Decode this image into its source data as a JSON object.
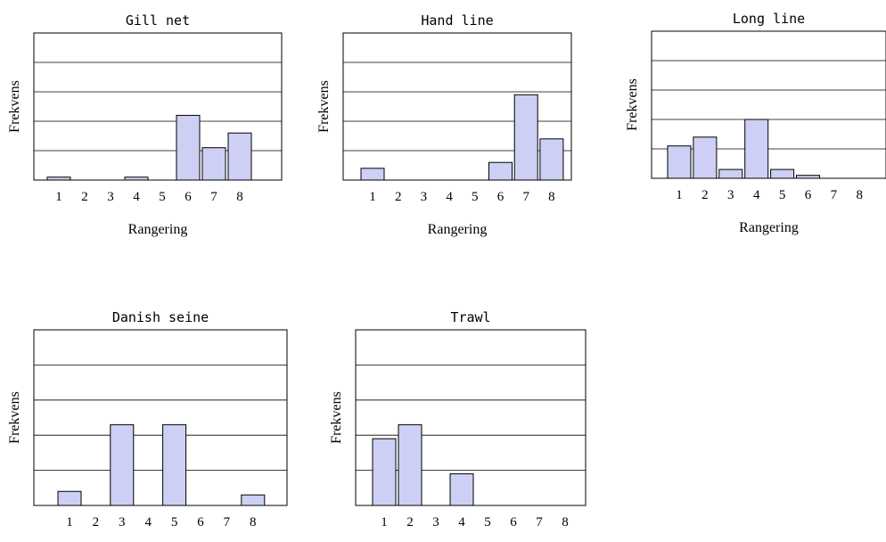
{
  "chart_data": [
    {
      "type": "bar",
      "title": "Gill net",
      "xlabel": "Rangering",
      "ylabel": "Frekvens",
      "categories": [
        "1",
        "2",
        "3",
        "4",
        "5",
        "6",
        "7",
        "8"
      ],
      "values": [
        0.1,
        0,
        0,
        0.1,
        0,
        2.2,
        1.1,
        1.6
      ],
      "ylim": [
        0,
        5
      ],
      "grid": true,
      "color": "#cdd0f4"
    },
    {
      "type": "bar",
      "title": "Hand line",
      "xlabel": "Rangering",
      "ylabel": "Frekvens",
      "categories": [
        "1",
        "2",
        "3",
        "4",
        "5",
        "6",
        "7",
        "8"
      ],
      "values": [
        0.4,
        0,
        0,
        0,
        0,
        0.6,
        2.9,
        1.4
      ],
      "ylim": [
        0,
        5
      ],
      "grid": true,
      "color": "#cdd0f4"
    },
    {
      "type": "bar",
      "title": "Long line",
      "xlabel": "Rangering",
      "ylabel": "Frekvens",
      "categories": [
        "1",
        "2",
        "3",
        "4",
        "5",
        "6",
        "7",
        "8"
      ],
      "values": [
        1.1,
        1.4,
        0.3,
        2.0,
        0.3,
        0.1,
        0,
        0
      ],
      "ylim": [
        0,
        5
      ],
      "grid": true,
      "color": "#cdd0f4"
    },
    {
      "type": "bar",
      "title": "Danish seine",
      "xlabel": "Rangering",
      "ylabel": "Frekvens",
      "categories": [
        "1",
        "2",
        "3",
        "4",
        "5",
        "6",
        "7",
        "8"
      ],
      "values": [
        0.4,
        0,
        2.3,
        0,
        2.3,
        0,
        0,
        0.3
      ],
      "ylim": [
        0,
        5
      ],
      "grid": true,
      "color": "#cdd0f4"
    },
    {
      "type": "bar",
      "title": "Trawl",
      "xlabel": "Rangering",
      "ylabel": "Frekvens",
      "categories": [
        "1",
        "2",
        "3",
        "4",
        "5",
        "6",
        "7",
        "8"
      ],
      "values": [
        1.9,
        2.3,
        0,
        0.9,
        0,
        0,
        0,
        0
      ],
      "ylim": [
        0,
        5
      ],
      "grid": true,
      "color": "#cdd0f4"
    }
  ]
}
